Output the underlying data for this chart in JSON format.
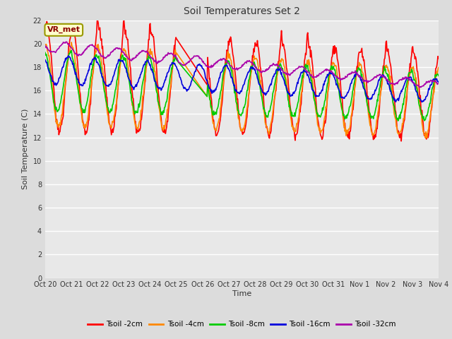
{
  "title": "Soil Temperatures Set 2",
  "xlabel": "Time",
  "ylabel": "Soil Temperature (C)",
  "ylim": [
    0,
    22
  ],
  "yticks": [
    0,
    2,
    4,
    6,
    8,
    10,
    12,
    14,
    16,
    18,
    20,
    22
  ],
  "annotation": "VR_met",
  "fig_bg": "#dcdcdc",
  "plot_bg": "#e8e8e8",
  "legend": [
    "Tsoil -2cm",
    "Tsoil -4cm",
    "Tsoil -8cm",
    "Tsoil -16cm",
    "Tsoil -32cm"
  ],
  "colors": [
    "#ff0000",
    "#ff8800",
    "#00cc00",
    "#0000dd",
    "#aa00aa"
  ],
  "x_tick_labels": [
    "Oct 20",
    "Oct 21",
    "Oct 22",
    "Oct 23",
    "Oct 24",
    "Oct 25",
    "Oct 26",
    "Oct 27",
    "Oct 28",
    "Oct 29",
    "Oct 30",
    "Oct 31",
    "Nov 1",
    "Nov 2",
    "Nov 3",
    "Nov 4"
  ],
  "linewidth": 1.2
}
